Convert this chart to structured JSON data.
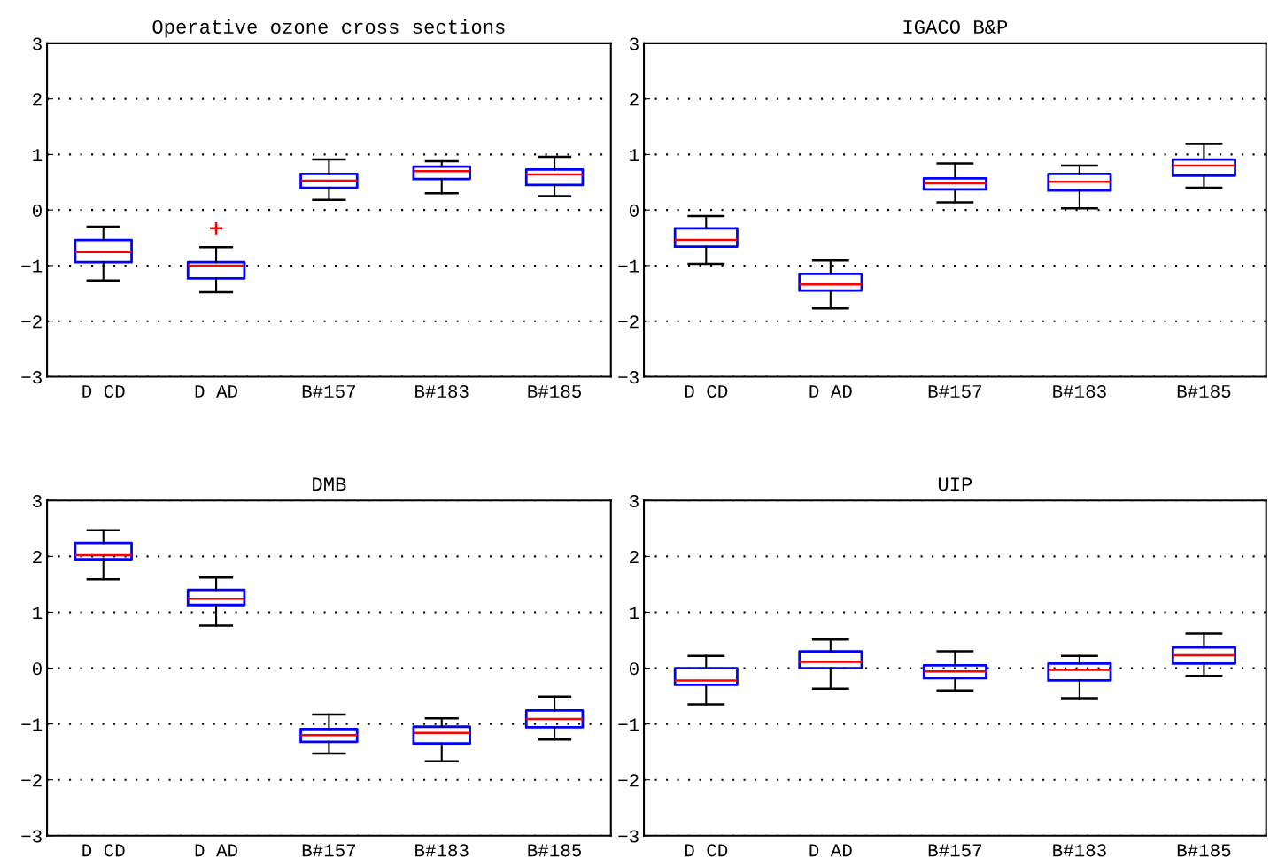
{
  "chart_data": [
    {
      "type": "box",
      "title": "Operative ozone cross sections",
      "categories": [
        "D CD",
        "D AD",
        "B#157",
        "B#183",
        "B#185"
      ],
      "ylim": [
        -3,
        3
      ],
      "yticks": [
        {
          "value": -3,
          "label": "−3"
        },
        {
          "value": -2,
          "label": "−2"
        },
        {
          "value": -1,
          "label": "−1"
        },
        0,
        1,
        2,
        3
      ],
      "grid": "y",
      "series": [
        {
          "color": "#0000ff",
          "boxes": [
            {
              "low": -1.27,
              "q1": -0.94,
              "median": -0.76,
              "q3": -0.54,
              "high": -0.3
            },
            {
              "low": -1.48,
              "q1": -1.23,
              "median": -1.0,
              "q3": -0.94,
              "high": -0.67,
              "outliers": [
                -0.33
              ]
            },
            {
              "low": 0.18,
              "q1": 0.4,
              "median": 0.53,
              "q3": 0.65,
              "high": 0.91
            },
            {
              "low": 0.3,
              "q1": 0.56,
              "median": 0.7,
              "q3": 0.78,
              "high": 0.88
            },
            {
              "low": 0.25,
              "q1": 0.45,
              "median": 0.64,
              "q3": 0.73,
              "high": 0.96
            }
          ]
        }
      ]
    },
    {
      "type": "box",
      "title": "IGACO B&P",
      "categories": [
        "D CD",
        "D AD",
        "B#157",
        "B#183",
        "B#185"
      ],
      "ylim": [
        -3,
        3
      ],
      "yticks": [
        {
          "value": -3,
          "label": "−3"
        },
        {
          "value": -2,
          "label": "−2"
        },
        {
          "value": -1,
          "label": "−1"
        },
        0,
        1,
        2,
        3
      ],
      "grid": "y",
      "series": [
        {
          "color": "#0000ff",
          "boxes": [
            {
              "low": -0.97,
              "q1": -0.66,
              "median": -0.54,
              "q3": -0.33,
              "high": -0.11
            },
            {
              "low": -1.77,
              "q1": -1.45,
              "median": -1.34,
              "q3": -1.15,
              "high": -0.91
            },
            {
              "low": 0.14,
              "q1": 0.37,
              "median": 0.48,
              "q3": 0.57,
              "high": 0.84
            },
            {
              "low": 0.03,
              "q1": 0.35,
              "median": 0.51,
              "q3": 0.65,
              "high": 0.8
            },
            {
              "low": 0.4,
              "q1": 0.62,
              "median": 0.8,
              "q3": 0.91,
              "high": 1.19
            }
          ]
        }
      ]
    },
    {
      "type": "box",
      "title": "DMB",
      "categories": [
        "D CD",
        "D AD",
        "B#157",
        "B#183",
        "B#185"
      ],
      "ylim": [
        -3,
        3
      ],
      "yticks": [
        {
          "value": -3,
          "label": "−3"
        },
        {
          "value": -2,
          "label": "−2"
        },
        {
          "value": -1,
          "label": "−1"
        },
        0,
        1,
        2,
        3
      ],
      "grid": "y",
      "series": [
        {
          "color": "#0000ff",
          "boxes": [
            {
              "low": 1.59,
              "q1": 1.95,
              "median": 2.02,
              "q3": 2.24,
              "high": 2.47
            },
            {
              "low": 0.76,
              "q1": 1.13,
              "median": 1.24,
              "q3": 1.4,
              "high": 1.62
            },
            {
              "low": -1.53,
              "q1": -1.32,
              "median": -1.2,
              "q3": -1.09,
              "high": -0.83
            },
            {
              "low": -1.67,
              "q1": -1.35,
              "median": -1.16,
              "q3": -1.05,
              "high": -0.9
            },
            {
              "low": -1.28,
              "q1": -1.06,
              "median": -0.91,
              "q3": -0.76,
              "high": -0.51
            }
          ]
        }
      ]
    },
    {
      "type": "box",
      "title": "UIP",
      "categories": [
        "D CD",
        "D AD",
        "B#157",
        "B#183",
        "B#185"
      ],
      "ylim": [
        -3,
        3
      ],
      "yticks": [
        {
          "value": -3,
          "label": "−3"
        },
        {
          "value": -2,
          "label": "−2"
        },
        {
          "value": -1,
          "label": "−1"
        },
        0,
        1,
        2,
        3
      ],
      "grid": "y",
      "series": [
        {
          "color": "#0000ff",
          "boxes": [
            {
              "low": -0.65,
              "q1": -0.3,
              "median": -0.22,
              "q3": 0.0,
              "high": 0.22
            },
            {
              "low": -0.37,
              "q1": 0.0,
              "median": 0.11,
              "q3": 0.3,
              "high": 0.51
            },
            {
              "low": -0.4,
              "q1": -0.18,
              "median": -0.06,
              "q3": 0.05,
              "high": 0.3
            },
            {
              "low": -0.54,
              "q1": -0.22,
              "median": -0.03,
              "q3": 0.08,
              "high": 0.22
            },
            {
              "low": -0.14,
              "q1": 0.08,
              "median": 0.23,
              "q3": 0.37,
              "high": 0.62
            }
          ]
        }
      ]
    }
  ]
}
